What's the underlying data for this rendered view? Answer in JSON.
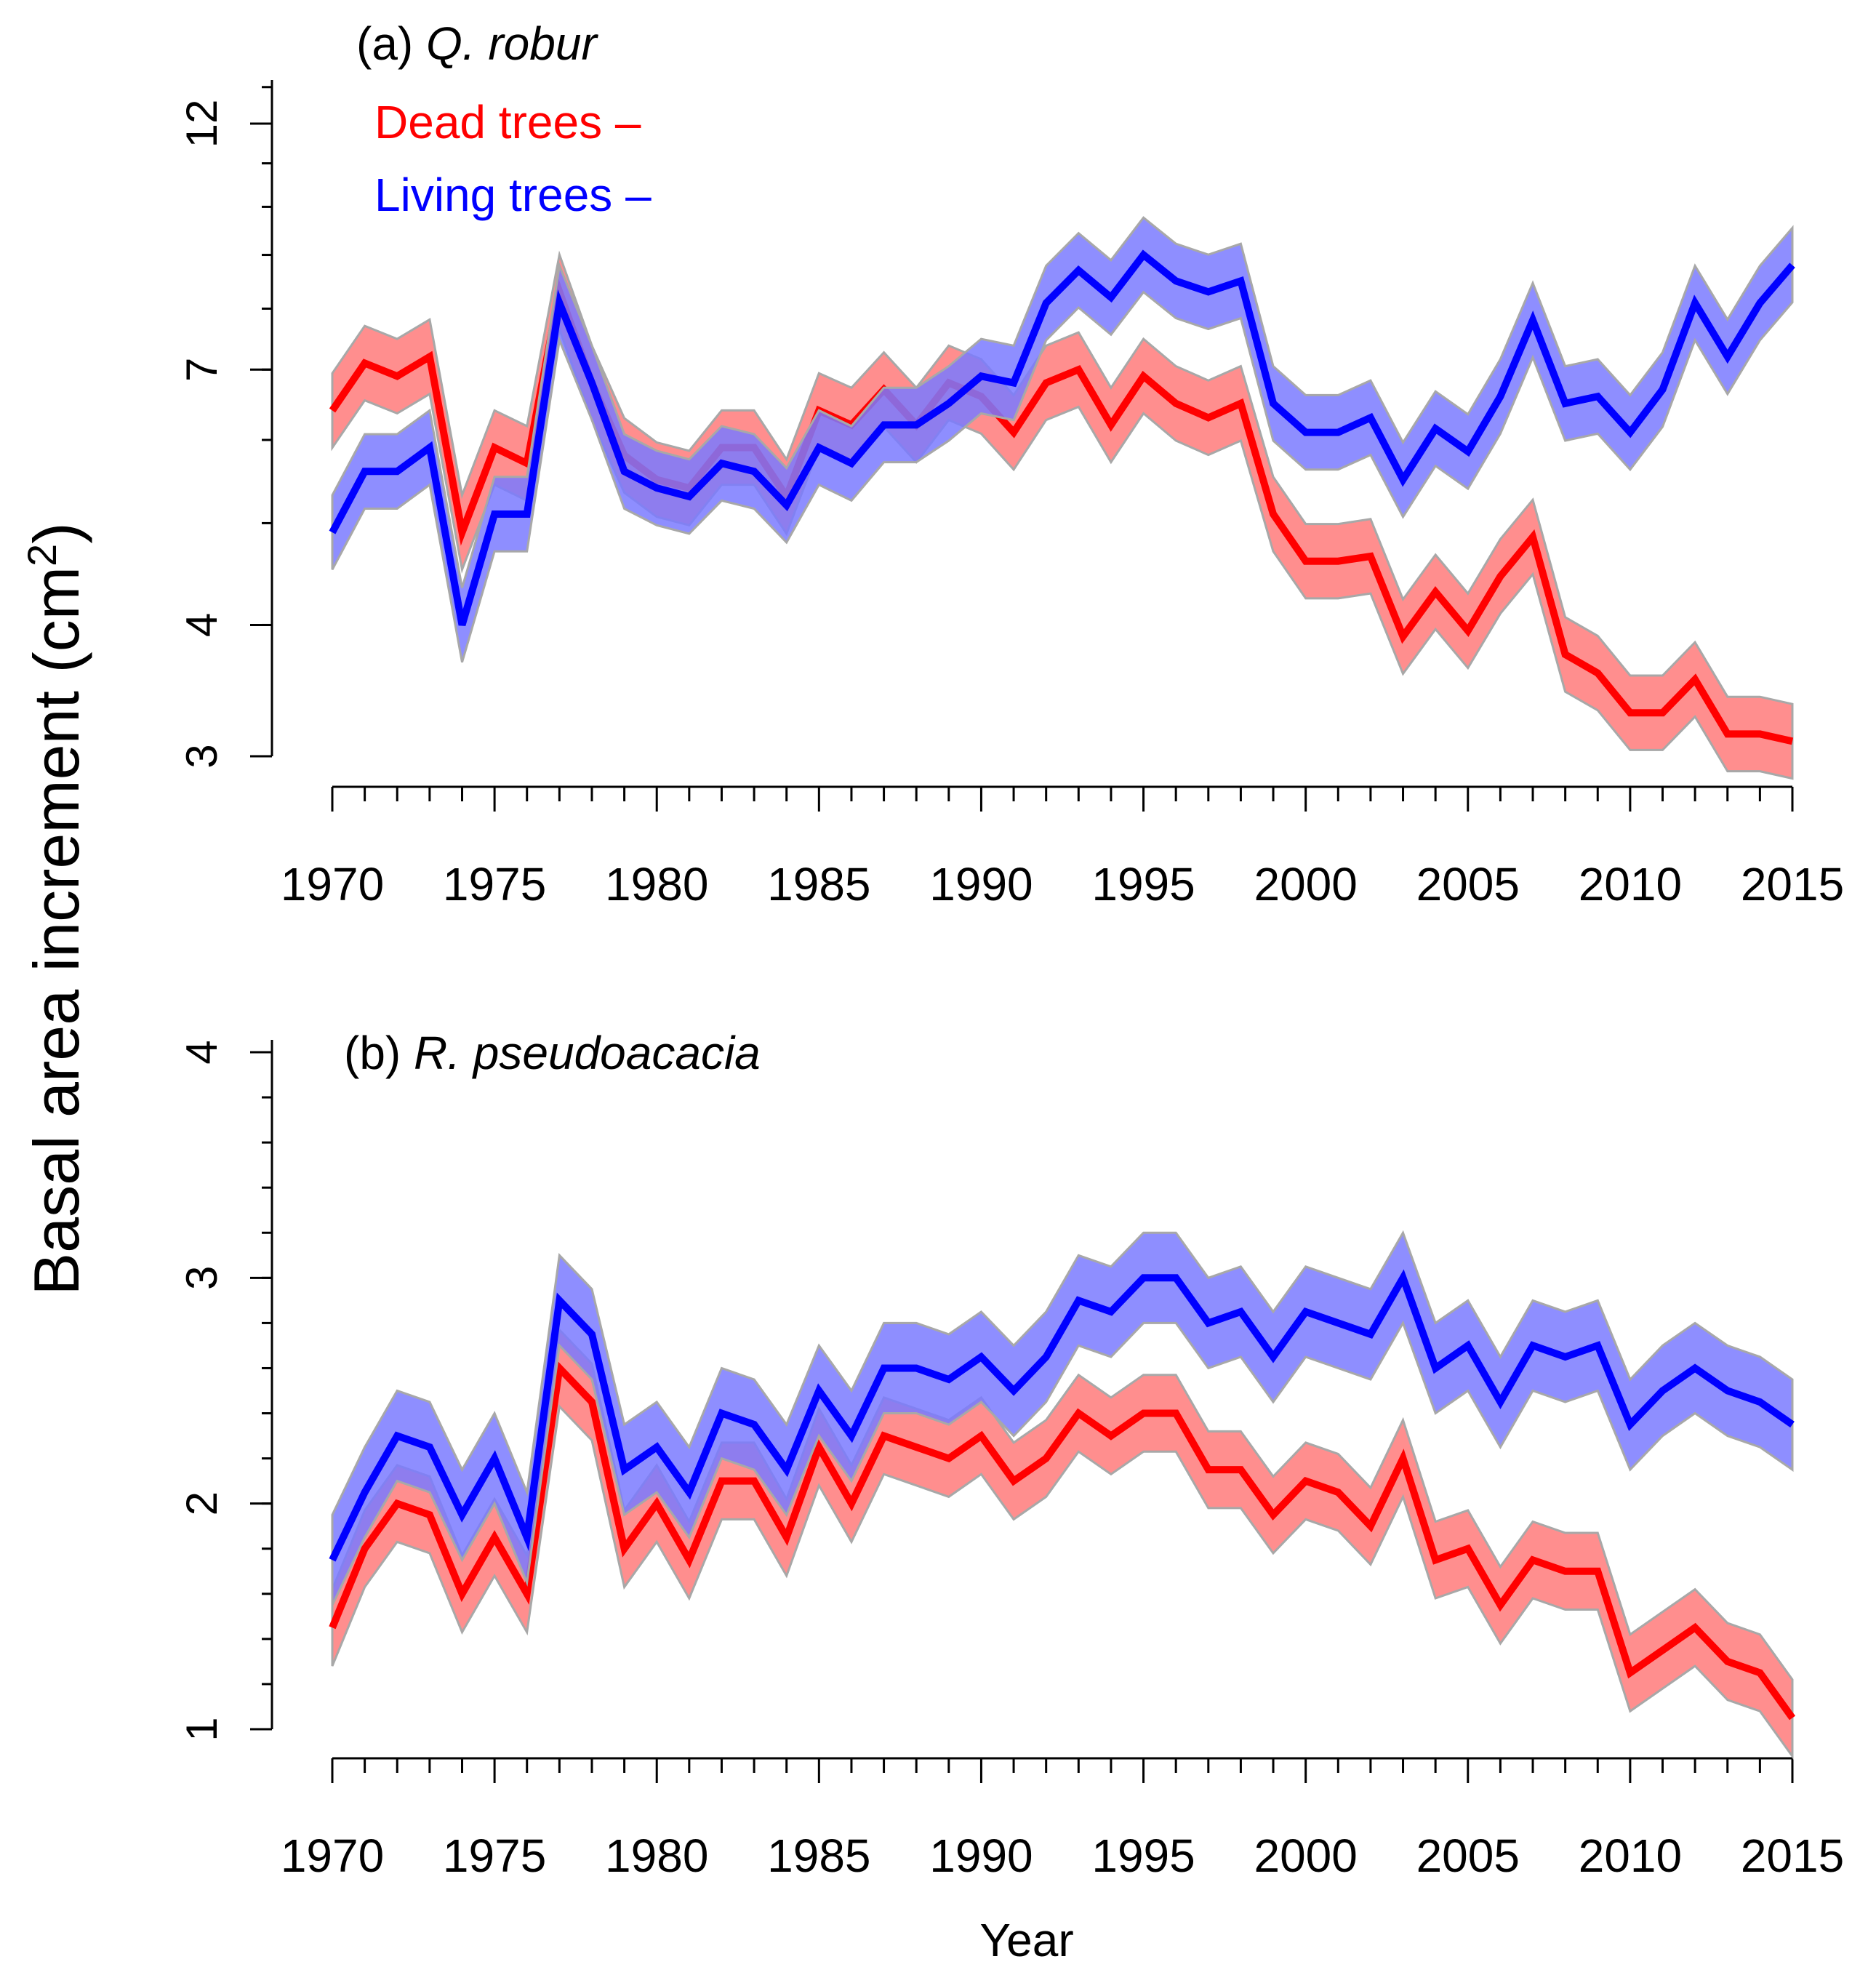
{
  "figure": {
    "ylabel": "Basal area increment (cm",
    "ylabel_sup": "2",
    "ylabel_close": ")",
    "xlabel": "Year"
  },
  "colors": {
    "dead": "#ff0000",
    "dead_band": "#ff7a7a",
    "living": "#0000ff",
    "living_band": "#7a7aff",
    "band_edge": "#a8a8a8",
    "axis": "#000000"
  },
  "chart_data": [
    {
      "type": "line",
      "panel": "a",
      "title_prefix": "(a) ",
      "title_species": "Q. robur",
      "legend": [
        {
          "label": "Dead trees –",
          "series": "dead"
        },
        {
          "label": "Living trees –",
          "series": "living"
        }
      ],
      "y_scale": "log",
      "ylim": [
        3,
        13.5
      ],
      "yticks": [
        "3",
        "4",
        "7",
        "12"
      ],
      "xlim": [
        1970,
        2015
      ],
      "xticks": [
        "1970",
        "1975",
        "1980",
        "1985",
        "1990",
        "1995",
        "2000",
        "2005",
        "2010",
        "2015"
      ],
      "x": [
        1970,
        1971,
        1972,
        1973,
        1974,
        1975,
        1976,
        1977,
        1978,
        1979,
        1980,
        1981,
        1982,
        1983,
        1984,
        1985,
        1986,
        1987,
        1988,
        1989,
        1990,
        1991,
        1992,
        1993,
        1994,
        1995,
        1996,
        1997,
        1998,
        1999,
        2000,
        2001,
        2002,
        2003,
        2004,
        2005,
        2006,
        2007,
        2008,
        2009,
        2010,
        2011,
        2012,
        2013,
        2014,
        2015
      ],
      "series": [
        {
          "name": "Dead trees",
          "key": "dead",
          "values": [
            6.4,
            7.1,
            6.9,
            7.2,
            4.9,
            5.9,
            5.7,
            8.3,
            6.8,
            5.8,
            5.5,
            5.4,
            5.9,
            5.9,
            5.3,
            6.4,
            6.2,
            6.7,
            6.2,
            6.8,
            6.6,
            6.1,
            6.8,
            7.0,
            6.2,
            6.9,
            6.5,
            6.3,
            6.5,
            5.1,
            4.6,
            4.6,
            4.65,
            3.9,
            4.3,
            3.95,
            4.45,
            4.85,
            3.75,
            3.6,
            3.3,
            3.3,
            3.55,
            3.15,
            3.15,
            3.1
          ],
          "band": 0.085
        },
        {
          "name": "Living trees",
          "key": "living",
          "values": [
            4.9,
            5.6,
            5.6,
            5.9,
            4.0,
            5.1,
            5.1,
            8.1,
            6.8,
            5.6,
            5.4,
            5.3,
            5.7,
            5.6,
            5.2,
            5.9,
            5.7,
            6.2,
            6.2,
            6.5,
            6.9,
            6.8,
            8.1,
            8.7,
            8.2,
            9.0,
            8.5,
            8.3,
            8.5,
            6.5,
            6.1,
            6.1,
            6.3,
            5.5,
            6.15,
            5.85,
            6.6,
            7.8,
            6.5,
            6.6,
            6.1,
            6.7,
            8.1,
            7.2,
            8.1,
            8.8
          ],
          "band": 0.085
        }
      ]
    },
    {
      "type": "line",
      "panel": "b",
      "title_prefix": "(b) ",
      "title_species": "R. pseudoacacia",
      "y_scale": "linear",
      "ylim": [
        1,
        4
      ],
      "yticks": [
        "1",
        "2",
        "3",
        "4"
      ],
      "xlim": [
        1970,
        2015
      ],
      "xticks": [
        "1970",
        "1975",
        "1980",
        "1985",
        "1990",
        "1995",
        "2000",
        "2005",
        "2010",
        "2015"
      ],
      "x": [
        1970,
        1971,
        1972,
        1973,
        1974,
        1975,
        1976,
        1977,
        1978,
        1979,
        1980,
        1981,
        1982,
        1983,
        1984,
        1985,
        1986,
        1987,
        1988,
        1989,
        1990,
        1991,
        1992,
        1993,
        1994,
        1995,
        1996,
        1997,
        1998,
        1999,
        2000,
        2001,
        2002,
        2003,
        2004,
        2005,
        2006,
        2007,
        2008,
        2009,
        2010,
        2011,
        2012,
        2013,
        2014,
        2015
      ],
      "series": [
        {
          "name": "Dead trees",
          "key": "dead",
          "values": [
            1.45,
            1.8,
            2.0,
            1.95,
            1.6,
            1.85,
            1.6,
            2.6,
            2.45,
            1.8,
            2.0,
            1.75,
            2.1,
            2.1,
            1.85,
            2.25,
            2.0,
            2.3,
            2.25,
            2.2,
            2.3,
            2.1,
            2.2,
            2.4,
            2.3,
            2.4,
            2.4,
            2.15,
            2.15,
            1.95,
            2.1,
            2.05,
            1.9,
            2.2,
            1.75,
            1.8,
            1.55,
            1.75,
            1.7,
            1.7,
            1.25,
            1.35,
            1.45,
            1.3,
            1.25,
            1.05
          ],
          "band": 0.17
        },
        {
          "name": "Living trees",
          "key": "living",
          "values": [
            1.75,
            2.05,
            2.3,
            2.25,
            1.95,
            2.2,
            1.85,
            2.9,
            2.75,
            2.15,
            2.25,
            2.05,
            2.4,
            2.35,
            2.15,
            2.5,
            2.3,
            2.6,
            2.6,
            2.55,
            2.65,
            2.5,
            2.65,
            2.9,
            2.85,
            3.0,
            3.0,
            2.8,
            2.85,
            2.65,
            2.85,
            2.8,
            2.75,
            3.0,
            2.6,
            2.7,
            2.45,
            2.7,
            2.65,
            2.7,
            2.35,
            2.5,
            2.6,
            2.5,
            2.45,
            2.35
          ],
          "band": 0.2
        }
      ]
    }
  ]
}
